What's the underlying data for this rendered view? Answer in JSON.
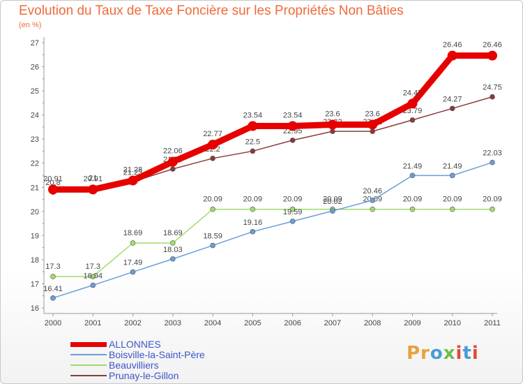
{
  "title": "Evolution du Taux de Taxe Foncière sur les Propriétés Non Bâties",
  "subtitle": "(en %)",
  "logo": "Proxiti",
  "chart_data": {
    "type": "line",
    "title": "Evolution du Taux de Taxe Foncière sur les Propriétés Non Bâties",
    "ylabel": "(en %)",
    "xlabel": "",
    "ylim": [
      16,
      27
    ],
    "yticks": [
      "16",
      "17",
      "18",
      "19",
      "20",
      "21",
      "22",
      "23",
      "24",
      "25",
      "26",
      "27"
    ],
    "categories": [
      "2000",
      "2001",
      "2002",
      "2003",
      "2004",
      "2005",
      "2006",
      "2007",
      "2008",
      "2009",
      "2010",
      "2011"
    ],
    "grid": false,
    "legend_position": "bottom-left",
    "series": [
      {
        "name": "ALLONNES",
        "color": "#e60000",
        "values": [
          20.91,
          20.91,
          21.28,
          22.06,
          22.77,
          23.54,
          23.54,
          23.6,
          23.6,
          24.47,
          26.46,
          26.46
        ],
        "labels": [
          "20.91",
          "20.91",
          "21.28",
          "22.06",
          "22.77",
          "23.54",
          "23.54",
          "23.6",
          "23.6",
          "24.47",
          "26.46",
          "26.46"
        ]
      },
      {
        "name": "Boisville-la-Saint-Père",
        "color": "#6a9ed8",
        "values": [
          16.41,
          16.94,
          17.49,
          18.03,
          18.59,
          19.16,
          19.59,
          20.02,
          20.46,
          21.49,
          21.49,
          22.03
        ],
        "labels": [
          "16.41",
          "16.94",
          "17.49",
          "18.03",
          "18.59",
          "19.16",
          "19.59",
          "20.02",
          "20.46",
          "21.49",
          "21.49",
          "22.03"
        ]
      },
      {
        "name": "Beauvilliers",
        "color": "#a0dc6a",
        "values": [
          17.3,
          17.3,
          18.69,
          18.69,
          20.09,
          20.09,
          20.09,
          20.09,
          20.09,
          20.09,
          20.09,
          20.09
        ],
        "labels": [
          "17.3",
          "17.3",
          "18.69",
          "18.69",
          "20.09",
          "20.09",
          "20.09",
          "20.09",
          "20.09",
          "20.09",
          "20.09",
          "20.09"
        ]
      },
      {
        "name": "Prunay-le-Gillon",
        "color": "#8a3a3a",
        "values": [
          20.8,
          21.0,
          21.23,
          21.76,
          22.2,
          22.5,
          22.95,
          23.32,
          23.32,
          23.79,
          24.27,
          24.75
        ],
        "labels": [
          "20.8",
          "21",
          "21.23",
          "21.76",
          "22.2",
          "22.5",
          "22.95",
          "23.32",
          "23.32",
          "23.79",
          "24.27",
          "24.75"
        ]
      }
    ]
  }
}
